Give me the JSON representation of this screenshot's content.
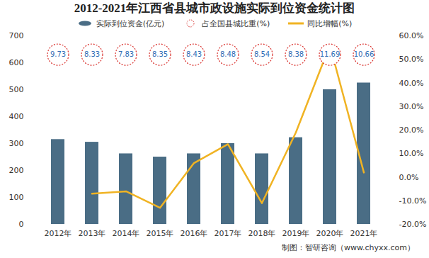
{
  "chart_data": {
    "type": "bar",
    "title": "2012-2021年江西省县城市政设施实际到位资金统计图",
    "categories": [
      "2012年",
      "2013年",
      "2014年",
      "2015年",
      "2016年",
      "2017年",
      "2018年",
      "2019年",
      "2020年",
      "2021年"
    ],
    "series": [
      {
        "name": "实际到位资金(亿元)",
        "type": "bar",
        "color": "#4a6d85",
        "values": [
          315,
          305,
          262,
          250,
          262,
          300,
          262,
          322,
          500,
          525
        ]
      },
      {
        "name": "占全国县城比重(%)",
        "type": "text",
        "color": "#d9302c",
        "marker": "circle",
        "line_style": "dotted",
        "data_labels": true,
        "values": [
          9.73,
          8.33,
          7.83,
          8.35,
          8.43,
          8.48,
          8.54,
          8.38,
          11.69,
          10.66
        ]
      },
      {
        "name": "同比增幅(%)",
        "type": "line",
        "color": "#f0b323",
        "axis": "y2",
        "values": [
          null,
          -7,
          -6,
          -13,
          6,
          14,
          -11,
          19,
          56,
          2
        ]
      }
    ],
    "ylim": [
      0,
      700
    ],
    "yticks": [
      0,
      100,
      200,
      300,
      400,
      500,
      600,
      700
    ],
    "y2lim": [
      -20,
      60
    ],
    "y2ticks": [
      {
        "value": -20,
        "label": "-20.0%"
      },
      {
        "value": -10,
        "label": "-10.0%"
      },
      {
        "value": 0,
        "label": "0.0%"
      },
      {
        "value": 10,
        "label": "10.0%"
      },
      {
        "value": 20,
        "label": "20.0%"
      },
      {
        "value": 30,
        "label": "30.0%"
      },
      {
        "value": 40,
        "label": "40.0%"
      },
      {
        "value": 50,
        "label": "50.0%"
      },
      {
        "value": 60,
        "label": "60.0%"
      }
    ],
    "legend": "top",
    "caption": "制图：智研咨询（www.chyxx.com）"
  }
}
